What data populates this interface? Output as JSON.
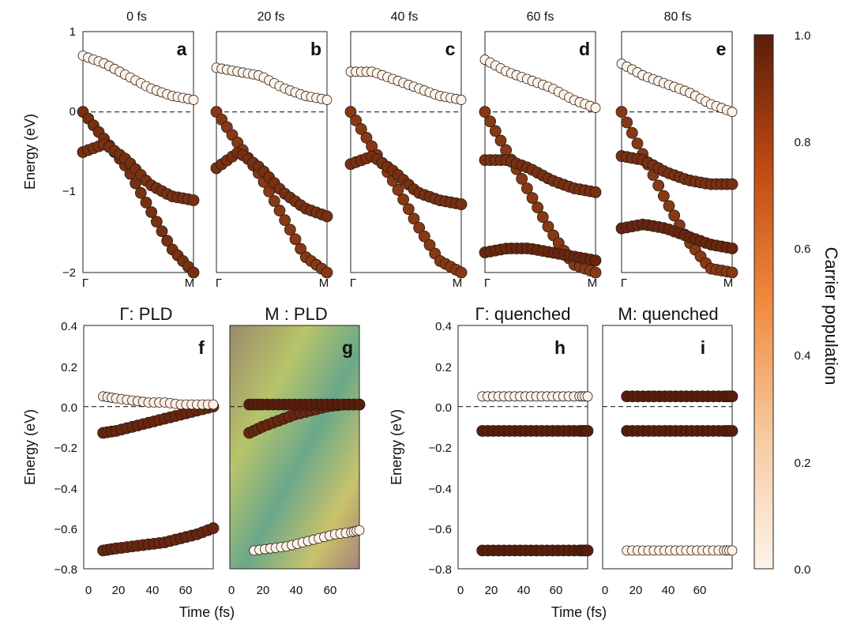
{
  "colors": {
    "low": "#fdf3ea",
    "mid": "#f07a2c",
    "high": "#5a1d0b",
    "frame": "#222222",
    "dots": "#1a1a1a"
  },
  "chart_data": [
    {
      "id": "a",
      "type": "scatter",
      "title": "0 fs",
      "letter": "a",
      "ylabel": "Energy (eV)",
      "ylim": [
        -2,
        1
      ],
      "yticks": [
        "1",
        "0",
        "−1",
        "−2"
      ],
      "xticks": [
        "Γ",
        "M"
      ],
      "series": [
        {
          "name": "valence band 1",
          "population": 0.9,
          "x": [
            0,
            0.2,
            0.4,
            0.6,
            0.8,
            1.0
          ],
          "y": [
            0.0,
            -0.35,
            -0.7,
            -1.2,
            -1.7,
            -2.0
          ]
        },
        {
          "name": "valence band 2",
          "population": 0.9,
          "x": [
            0,
            0.2,
            0.4,
            0.6,
            0.8,
            1.0
          ],
          "y": [
            -0.5,
            -0.4,
            -0.6,
            -0.9,
            -1.05,
            -1.1
          ]
        },
        {
          "name": "conduction band",
          "population": 0.0,
          "x": [
            0,
            0.2,
            0.4,
            0.6,
            0.8,
            1.0
          ],
          "y": [
            0.7,
            0.6,
            0.45,
            0.3,
            0.2,
            0.15
          ]
        }
      ]
    },
    {
      "id": "b",
      "type": "scatter",
      "title": "20 fs",
      "letter": "b",
      "ylim": [
        -2,
        1
      ],
      "xticks": [
        "Γ",
        "M"
      ],
      "series": [
        {
          "name": "valence band 1",
          "population": 0.85,
          "x": [
            0,
            0.2,
            0.4,
            0.6,
            0.8,
            1.0
          ],
          "y": [
            0.0,
            -0.4,
            -0.8,
            -1.3,
            -1.8,
            -2.0
          ]
        },
        {
          "name": "valence band 2",
          "population": 0.9,
          "x": [
            0,
            0.2,
            0.4,
            0.6,
            0.8,
            1.0
          ],
          "y": [
            -0.7,
            -0.5,
            -0.7,
            -1.0,
            -1.2,
            -1.3
          ]
        },
        {
          "name": "conduction band",
          "population": 0.0,
          "x": [
            0,
            0.2,
            0.4,
            0.6,
            0.8,
            1.0
          ],
          "y": [
            0.55,
            0.5,
            0.45,
            0.3,
            0.2,
            0.15
          ]
        }
      ]
    },
    {
      "id": "c",
      "type": "scatter",
      "title": "40 fs",
      "letter": "c",
      "ylim": [
        -2,
        1
      ],
      "xticks": [
        "Γ",
        "M"
      ],
      "series": [
        {
          "name": "valence band 1",
          "population": 0.85,
          "x": [
            0,
            0.2,
            0.4,
            0.6,
            0.8,
            1.0
          ],
          "y": [
            0.0,
            -0.45,
            -0.9,
            -1.4,
            -1.85,
            -2.0
          ]
        },
        {
          "name": "valence band 2",
          "population": 0.9,
          "x": [
            0,
            0.2,
            0.4,
            0.6,
            0.8,
            1.0
          ],
          "y": [
            -0.65,
            -0.55,
            -0.75,
            -1.0,
            -1.1,
            -1.15
          ]
        },
        {
          "name": "conduction band",
          "population": 0.0,
          "x": [
            0,
            0.2,
            0.4,
            0.6,
            0.8,
            1.0
          ],
          "y": [
            0.5,
            0.5,
            0.4,
            0.3,
            0.2,
            0.15
          ]
        }
      ]
    },
    {
      "id": "d",
      "type": "scatter",
      "title": "60 fs",
      "letter": "d",
      "ylim": [
        -2,
        1
      ],
      "xticks": [
        "Γ",
        "M"
      ],
      "series": [
        {
          "name": "valence band 1",
          "population": 0.85,
          "x": [
            0,
            0.2,
            0.4,
            0.6,
            0.8,
            1.0
          ],
          "y": [
            0.0,
            -0.5,
            -1.0,
            -1.5,
            -1.9,
            -2.0
          ]
        },
        {
          "name": "valence band 2",
          "population": 0.9,
          "x": [
            0,
            0.2,
            0.4,
            0.6,
            0.8,
            1.0
          ],
          "y": [
            -0.6,
            -0.6,
            -0.7,
            -0.85,
            -0.95,
            -1.0
          ]
        },
        {
          "name": "lower band",
          "population": 0.95,
          "x": [
            0,
            0.2,
            0.4,
            0.6,
            0.8,
            1.0
          ],
          "y": [
            -1.75,
            -1.7,
            -1.7,
            -1.75,
            -1.8,
            -1.85
          ]
        },
        {
          "name": "conduction band",
          "population": 0.0,
          "x": [
            0,
            0.2,
            0.4,
            0.6,
            0.8,
            1.0
          ],
          "y": [
            0.65,
            0.5,
            0.4,
            0.3,
            0.15,
            0.05
          ]
        }
      ]
    },
    {
      "id": "e",
      "type": "scatter",
      "title": "80 fs",
      "letter": "e",
      "ylim": [
        -2,
        1
      ],
      "xticks": [
        "Γ",
        "M"
      ],
      "series": [
        {
          "name": "valence band 1",
          "population": 0.85,
          "x": [
            0,
            0.2,
            0.4,
            0.6,
            0.8,
            1.0
          ],
          "y": [
            0.0,
            -0.55,
            -1.1,
            -1.6,
            -1.95,
            -2.0
          ]
        },
        {
          "name": "valence band 2",
          "population": 0.9,
          "x": [
            0,
            0.2,
            0.4,
            0.6,
            0.8,
            1.0
          ],
          "y": [
            -0.55,
            -0.6,
            -0.75,
            -0.85,
            -0.9,
            -0.9
          ]
        },
        {
          "name": "lower band",
          "population": 0.95,
          "x": [
            0,
            0.2,
            0.4,
            0.6,
            0.8,
            1.0
          ],
          "y": [
            -1.45,
            -1.4,
            -1.45,
            -1.55,
            -1.65,
            -1.7
          ]
        },
        {
          "name": "conduction band",
          "population": 0.0,
          "x": [
            0,
            0.2,
            0.4,
            0.6,
            0.8,
            1.0
          ],
          "y": [
            0.6,
            0.45,
            0.35,
            0.25,
            0.1,
            0.0
          ]
        }
      ]
    },
    {
      "id": "f",
      "type": "scatter",
      "title": "Γ: PLD",
      "letter": "f",
      "xlabel": "Time (fs)",
      "ylabel": "Energy (eV)",
      "xlim": [
        0,
        80
      ],
      "ylim": [
        -0.8,
        0.4
      ],
      "xticks": [
        "0",
        "20",
        "40",
        "60"
      ],
      "yticks": [
        "0.4",
        "0.2",
        "0.0",
        "−0.2",
        "−0.4",
        "−0.6",
        "−0.8"
      ],
      "series": [
        {
          "name": "upper valence",
          "population": 0.95,
          "x": [
            12,
            20,
            30,
            40,
            50,
            60,
            70,
            80
          ],
          "y": [
            -0.13,
            -0.12,
            -0.1,
            -0.08,
            -0.06,
            -0.04,
            -0.02,
            0.0
          ]
        },
        {
          "name": "lower valence",
          "population": 0.95,
          "x": [
            12,
            20,
            30,
            40,
            50,
            60,
            70,
            80
          ],
          "y": [
            -0.71,
            -0.7,
            -0.69,
            -0.68,
            -0.67,
            -0.65,
            -0.63,
            -0.6
          ]
        },
        {
          "name": "conduction",
          "population": 0.02,
          "x": [
            12,
            20,
            30,
            40,
            50,
            60,
            70,
            80
          ],
          "y": [
            0.05,
            0.04,
            0.03,
            0.02,
            0.02,
            0.01,
            0.01,
            0.01
          ]
        }
      ]
    },
    {
      "id": "g",
      "type": "scatter",
      "title": "M : PLD",
      "letter": "g",
      "xlim": [
        0,
        80
      ],
      "ylim": [
        -0.8,
        0.4
      ],
      "xticks": [
        "0",
        "20",
        "40",
        "60"
      ],
      "series": [
        {
          "name": "upper valence",
          "population": 0.95,
          "x": [
            12,
            20,
            30,
            40,
            50,
            60,
            70,
            80
          ],
          "y": [
            -0.13,
            -0.1,
            -0.07,
            -0.04,
            -0.02,
            0.0,
            0.01,
            0.01
          ]
        },
        {
          "name": "conduction",
          "population": 1.0,
          "x": [
            12,
            20,
            30,
            40,
            50,
            60,
            70,
            80
          ],
          "y": [
            0.01,
            0.01,
            0.01,
            0.01,
            0.01,
            0.01,
            0.01,
            0.01
          ]
        },
        {
          "name": "lower",
          "population": 0.0,
          "x": [
            15,
            25,
            35,
            45,
            55,
            65,
            75,
            80
          ],
          "y": [
            -0.71,
            -0.7,
            -0.69,
            -0.67,
            -0.65,
            -0.63,
            -0.62,
            -0.61
          ]
        }
      ]
    },
    {
      "id": "h",
      "type": "scatter",
      "title": "Γ: quenched",
      "letter": "h",
      "xlabel": "Time (fs)",
      "ylabel": "Energy (eV)",
      "xlim": [
        0,
        80
      ],
      "ylim": [
        -0.8,
        0.4
      ],
      "xticks": [
        "0",
        "20",
        "40",
        "60"
      ],
      "yticks": [
        "0.4",
        "0.2",
        "0.0",
        "−0.2",
        "−0.4",
        "−0.6",
        "−0.8"
      ],
      "series": [
        {
          "name": "upper valence",
          "population": 1.0,
          "x": [
            15,
            25,
            35,
            45,
            55,
            65,
            75,
            80
          ],
          "y": [
            -0.12,
            -0.12,
            -0.12,
            -0.12,
            -0.12,
            -0.12,
            -0.12,
            -0.12
          ]
        },
        {
          "name": "lower valence",
          "population": 1.0,
          "x": [
            15,
            25,
            35,
            45,
            55,
            65,
            75,
            80
          ],
          "y": [
            -0.71,
            -0.71,
            -0.71,
            -0.71,
            -0.71,
            -0.71,
            -0.71,
            -0.71
          ]
        },
        {
          "name": "conduction",
          "population": 0.0,
          "x": [
            15,
            25,
            35,
            45,
            55,
            65,
            75,
            80
          ],
          "y": [
            0.05,
            0.05,
            0.05,
            0.05,
            0.05,
            0.05,
            0.05,
            0.05
          ]
        }
      ]
    },
    {
      "id": "i",
      "type": "scatter",
      "title": "M: quenched",
      "letter": "i",
      "xlim": [
        0,
        80
      ],
      "ylim": [
        -0.8,
        0.4
      ],
      "xticks": [
        "0",
        "20",
        "40",
        "60"
      ],
      "series": [
        {
          "name": "upper valence",
          "population": 1.0,
          "x": [
            15,
            25,
            35,
            45,
            55,
            65,
            75,
            80
          ],
          "y": [
            -0.12,
            -0.12,
            -0.12,
            -0.12,
            -0.12,
            -0.12,
            -0.12,
            -0.12
          ]
        },
        {
          "name": "conduction",
          "population": 1.0,
          "x": [
            15,
            25,
            35,
            45,
            55,
            65,
            75,
            80
          ],
          "y": [
            0.05,
            0.05,
            0.05,
            0.05,
            0.05,
            0.05,
            0.05,
            0.05
          ]
        },
        {
          "name": "lower",
          "population": 0.0,
          "x": [
            15,
            25,
            35,
            45,
            55,
            65,
            75,
            80
          ],
          "y": [
            -0.71,
            -0.71,
            -0.71,
            -0.71,
            -0.71,
            -0.71,
            -0.71,
            -0.71
          ]
        }
      ]
    },
    {
      "id": "colorbar",
      "type": "heatmap",
      "label": "Carrier population",
      "range": [
        0.0,
        1.0
      ],
      "ticks": [
        "1.0",
        "0.8",
        "0.6",
        "0.4",
        "0.2",
        "0.0"
      ]
    }
  ]
}
